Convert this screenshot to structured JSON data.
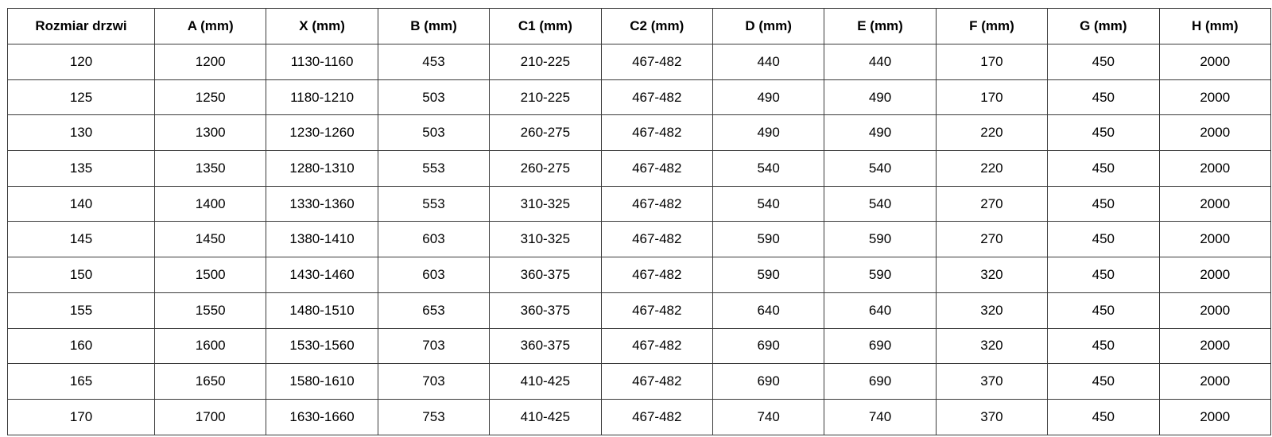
{
  "table": {
    "headers": [
      "Rozmiar drzwi",
      "A (mm)",
      "X (mm)",
      "B (mm)",
      "C1 (mm)",
      "C2 (mm)",
      "D (mm)",
      "E (mm)",
      "F (mm)",
      "G (mm)",
      "H (mm)"
    ],
    "rows": [
      [
        "120",
        "1200",
        "1130-1160",
        "453",
        "210-225",
        "467-482",
        "440",
        "440",
        "170",
        "450",
        "2000"
      ],
      [
        "125",
        "1250",
        "1180-1210",
        "503",
        "210-225",
        "467-482",
        "490",
        "490",
        "170",
        "450",
        "2000"
      ],
      [
        "130",
        "1300",
        "1230-1260",
        "503",
        "260-275",
        "467-482",
        "490",
        "490",
        "220",
        "450",
        "2000"
      ],
      [
        "135",
        "1350",
        "1280-1310",
        "553",
        "260-275",
        "467-482",
        "540",
        "540",
        "220",
        "450",
        "2000"
      ],
      [
        "140",
        "1400",
        "1330-1360",
        "553",
        "310-325",
        "467-482",
        "540",
        "540",
        "270",
        "450",
        "2000"
      ],
      [
        "145",
        "1450",
        "1380-1410",
        "603",
        "310-325",
        "467-482",
        "590",
        "590",
        "270",
        "450",
        "2000"
      ],
      [
        "150",
        "1500",
        "1430-1460",
        "603",
        "360-375",
        "467-482",
        "590",
        "590",
        "320",
        "450",
        "2000"
      ],
      [
        "155",
        "1550",
        "1480-1510",
        "653",
        "360-375",
        "467-482",
        "640",
        "640",
        "320",
        "450",
        "2000"
      ],
      [
        "160",
        "1600",
        "1530-1560",
        "703",
        "360-375",
        "467-482",
        "690",
        "690",
        "320",
        "450",
        "2000"
      ],
      [
        "165",
        "1650",
        "1580-1610",
        "703",
        "410-425",
        "467-482",
        "690",
        "690",
        "370",
        "450",
        "2000"
      ],
      [
        "170",
        "1700",
        "1630-1660",
        "753",
        "410-425",
        "467-482",
        "740",
        "740",
        "370",
        "450",
        "2000"
      ]
    ]
  }
}
